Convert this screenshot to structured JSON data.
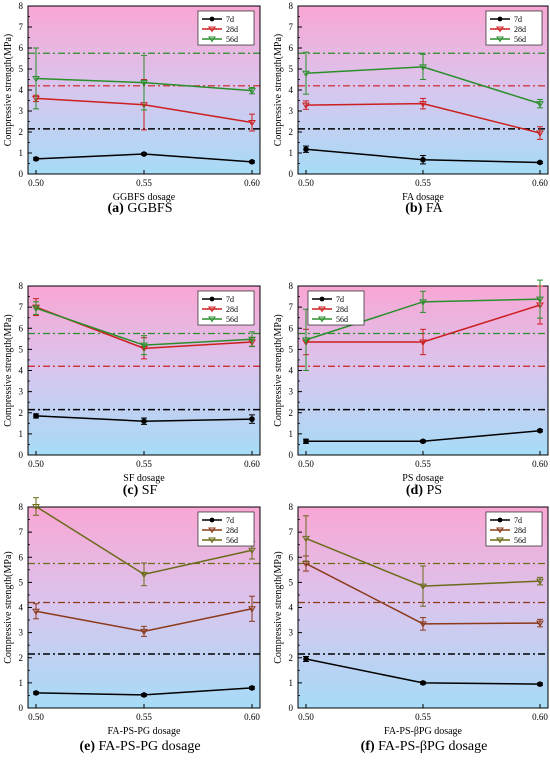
{
  "chart_data": [
    {
      "type": "line",
      "caption_letter": "(a)",
      "caption_text": " GGBFS",
      "xlabel": "GGBFS dosage",
      "ylabel": "Compressive strength(MPa)",
      "x": [
        0.5,
        0.55,
        0.6
      ],
      "x_ticks": [
        "0.50",
        "0.55",
        "0.60"
      ],
      "xlim": [
        0.5,
        0.6
      ],
      "ylim": [
        0,
        8
      ],
      "y_ticks": [
        "0",
        "1",
        "2",
        "3",
        "4",
        "5",
        "6",
        "7",
        "8"
      ],
      "legend_position": "top-right",
      "series": [
        {
          "name": "7d",
          "values": [
            0.72,
            0.95,
            0.58
          ],
          "errors": [
            0.06,
            0.05,
            0.05
          ],
          "color": "#000000"
        },
        {
          "name": "28d",
          "values": [
            3.6,
            3.3,
            2.45
          ],
          "errors": [
            0.15,
            1.2,
            0.4
          ],
          "color": "#cc1f1f"
        },
        {
          "name": "56d",
          "values": [
            4.55,
            4.35,
            3.97
          ],
          "errors": [
            1.45,
            1.3,
            0.15
          ],
          "color": "#2a8f2a"
        }
      ],
      "reference_lines": [
        {
          "value": 2.15,
          "color": "#000000"
        },
        {
          "value": 4.2,
          "color": "#cc1f1f"
        },
        {
          "value": 5.75,
          "color": "#2a8f2a"
        }
      ]
    },
    {
      "type": "line",
      "caption_letter": "(b)",
      "caption_text": " FA",
      "xlabel": "FA dosage",
      "ylabel": "Compressive strength(MPa)",
      "x": [
        0.5,
        0.55,
        0.6
      ],
      "x_ticks": [
        "0.50",
        "0.55",
        "0.60"
      ],
      "xlim": [
        0.5,
        0.6
      ],
      "ylim": [
        0,
        8
      ],
      "y_ticks": [
        "0",
        "1",
        "2",
        "3",
        "4",
        "5",
        "6",
        "7",
        "8"
      ],
      "legend_position": "top-right",
      "series": [
        {
          "name": "7d",
          "values": [
            1.18,
            0.68,
            0.55
          ],
          "errors": [
            0.15,
            0.2,
            0.05
          ],
          "color": "#000000"
        },
        {
          "name": "28d",
          "values": [
            3.28,
            3.35,
            1.95
          ],
          "errors": [
            0.2,
            0.25,
            0.3
          ],
          "color": "#cc1f1f"
        },
        {
          "name": "56d",
          "values": [
            4.8,
            5.1,
            3.35
          ],
          "errors": [
            1.0,
            0.6,
            0.2
          ],
          "color": "#2a8f2a"
        }
      ],
      "reference_lines": [
        {
          "value": 2.15,
          "color": "#000000"
        },
        {
          "value": 4.2,
          "color": "#cc1f1f"
        },
        {
          "value": 5.75,
          "color": "#2a8f2a"
        }
      ]
    },
    {
      "type": "line",
      "caption_letter": "(c)",
      "caption_text": " SF",
      "xlabel": "SF dosage",
      "ylabel": "Compressive strength(MPa)",
      "x": [
        0.5,
        0.55,
        0.6
      ],
      "x_ticks": [
        "0.50",
        "0.55",
        "0.60"
      ],
      "xlim": [
        0.5,
        0.6
      ],
      "ylim": [
        0,
        8
      ],
      "y_ticks": [
        "0",
        "1",
        "2",
        "3",
        "4",
        "5",
        "6",
        "7",
        "8"
      ],
      "legend_position": "top-right",
      "series": [
        {
          "name": "7d",
          "values": [
            1.85,
            1.6,
            1.7
          ],
          "errors": [
            0.1,
            0.15,
            0.2
          ],
          "color": "#000000"
        },
        {
          "name": "28d",
          "values": [
            7.0,
            5.05,
            5.35
          ],
          "errors": [
            0.4,
            0.5,
            0.2
          ],
          "color": "#cc1f1f"
        },
        {
          "name": "56d",
          "values": [
            6.95,
            5.2,
            5.48
          ],
          "errors": [
            0.3,
            0.45,
            0.35
          ],
          "color": "#2a8f2a"
        }
      ],
      "reference_lines": [
        {
          "value": 2.15,
          "color": "#000000"
        },
        {
          "value": 4.2,
          "color": "#cc1f1f"
        },
        {
          "value": 5.75,
          "color": "#2a8f2a"
        }
      ]
    },
    {
      "type": "line",
      "caption_letter": "(d)",
      "caption_text": " PS",
      "xlabel": "PS dosage",
      "ylabel": "Compressive strength(MPa)",
      "x": [
        0.5,
        0.55,
        0.6
      ],
      "x_ticks": [
        "0.50",
        "0.55",
        "0.60"
      ],
      "xlim": [
        0.5,
        0.6
      ],
      "ylim": [
        0,
        8
      ],
      "y_ticks": [
        "0",
        "1",
        "2",
        "3",
        "4",
        "5",
        "6",
        "7",
        "8"
      ],
      "legend_position": "top-left",
      "series": [
        {
          "name": "7d",
          "values": [
            0.65,
            0.65,
            1.15
          ],
          "errors": [
            0.1,
            0.05,
            0.05
          ],
          "color": "#000000"
        },
        {
          "name": "28d",
          "values": [
            5.35,
            5.35,
            7.1
          ],
          "errors": [
            0.6,
            0.6,
            0.9
          ],
          "color": "#cc1f1f"
        },
        {
          "name": "56d",
          "values": [
            5.45,
            7.25,
            7.38
          ],
          "errors": [
            1.45,
            0.5,
            0.9
          ],
          "color": "#2a8f2a"
        }
      ],
      "reference_lines": [
        {
          "value": 2.15,
          "color": "#000000"
        },
        {
          "value": 4.2,
          "color": "#cc1f1f"
        },
        {
          "value": 5.75,
          "color": "#2a8f2a"
        }
      ]
    },
    {
      "type": "line",
      "caption_letter": "(e)",
      "caption_text": " FA-PS-PG dosage",
      "xlabel": "FA-PS-PG dosage",
      "ylabel": "Compressive strength(MPa)",
      "x": [
        0.5,
        0.55,
        0.6
      ],
      "x_ticks": [
        "0.50",
        "0.55",
        "0.60"
      ],
      "xlim": [
        0.5,
        0.6
      ],
      "ylim": [
        0,
        8
      ],
      "y_ticks": [
        "0",
        "1",
        "2",
        "3",
        "4",
        "5",
        "6",
        "7",
        "8"
      ],
      "legend_position": "top-right",
      "series": [
        {
          "name": "7d",
          "values": [
            0.6,
            0.52,
            0.8
          ],
          "errors": [
            0.05,
            0.05,
            0.05
          ],
          "color": "#000000"
        },
        {
          "name": "28d",
          "values": [
            3.85,
            3.05,
            3.95
          ],
          "errors": [
            0.3,
            0.2,
            0.5
          ],
          "color": "#8b3a1a"
        },
        {
          "name": "56d",
          "values": [
            8.02,
            5.32,
            6.28
          ],
          "errors": [
            0.35,
            0.45,
            0.35
          ],
          "color": "#6b6b1a"
        }
      ],
      "reference_lines": [
        {
          "value": 2.15,
          "color": "#000000"
        },
        {
          "value": 4.2,
          "color": "#8b3a1a"
        },
        {
          "value": 5.75,
          "color": "#6b6b1a"
        }
      ]
    },
    {
      "type": "line",
      "caption_letter": "(f)",
      "caption_text": " FA-PS-βPG dosage",
      "xlabel": "FA-PS-βPG dosage",
      "ylabel": "Compressive strength(MPa)",
      "x": [
        0.5,
        0.55,
        0.6
      ],
      "x_ticks": [
        "0.50",
        "0.55",
        "0.60"
      ],
      "xlim": [
        0.5,
        0.6
      ],
      "ylim": [
        0,
        8
      ],
      "y_ticks": [
        "0",
        "1",
        "2",
        "3",
        "4",
        "5",
        "6",
        "7",
        "8"
      ],
      "legend_position": "top-right",
      "series": [
        {
          "name": "7d",
          "values": [
            1.95,
            1.0,
            0.95
          ],
          "errors": [
            0.1,
            0.05,
            0.05
          ],
          "color": "#000000"
        },
        {
          "name": "28d",
          "values": [
            5.75,
            3.35,
            3.38
          ],
          "errors": [
            0.3,
            0.25,
            0.15
          ],
          "color": "#8b3a1a"
        },
        {
          "name": "56d",
          "values": [
            6.75,
            4.85,
            5.05
          ],
          "errors": [
            0.9,
            0.8,
            0.15
          ],
          "color": "#6b6b1a"
        }
      ],
      "reference_lines": [
        {
          "value": 2.15,
          "color": "#000000"
        },
        {
          "value": 4.2,
          "color": "#8b3a1a"
        },
        {
          "value": 5.75,
          "color": "#6b6b1a"
        }
      ]
    }
  ]
}
